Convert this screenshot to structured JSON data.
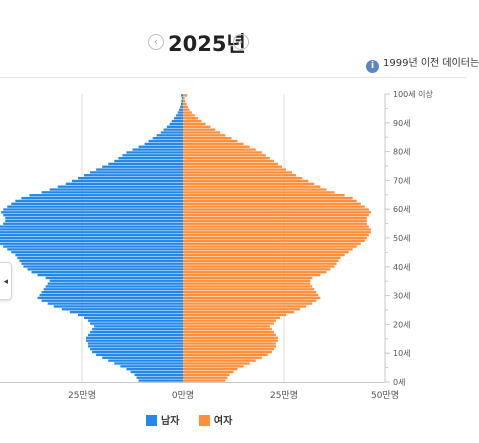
{
  "header": {
    "year": "2025년",
    "prev_icon": "chevron-left-circle-icon",
    "next_icon": "chevron-right-circle-icon",
    "prev_glyph": "‹",
    "next_glyph": "›",
    "notice_icon": "info-icon",
    "notice_glyph": "i",
    "notice_text": "1999년 이전 데이터는"
  },
  "side_tab": {
    "icon": "collapse-arrow-icon",
    "glyph": "◂"
  },
  "colors": {
    "male": "#2388e8",
    "female": "#ff8f3b",
    "axis": "#c8c8c8",
    "grid": "#dddddd"
  },
  "chart_data": {
    "type": "bar",
    "orientation": "horizontal-pyramid",
    "xlabel": "",
    "ylabel": "",
    "x_ticks": [
      "25만명",
      "0만명",
      "25만명",
      "50만명"
    ],
    "x_tick_values": [
      -25,
      0,
      25,
      50
    ],
    "y_ticks": [
      "100세 이상",
      "90세",
      "80세",
      "70세",
      "60세",
      "50세",
      "40세",
      "30세",
      "20세",
      "10세",
      "0세"
    ],
    "y_tick_ages": [
      100,
      90,
      80,
      70,
      60,
      50,
      40,
      30,
      20,
      10,
      0
    ],
    "xlim": [
      -50,
      50
    ],
    "unit": "만명",
    "ages": [
      0,
      1,
      2,
      3,
      4,
      5,
      6,
      7,
      8,
      9,
      10,
      11,
      12,
      13,
      14,
      15,
      16,
      17,
      18,
      19,
      20,
      21,
      22,
      23,
      24,
      25,
      26,
      27,
      28,
      29,
      30,
      31,
      32,
      33,
      34,
      35,
      36,
      37,
      38,
      39,
      40,
      41,
      42,
      43,
      44,
      45,
      46,
      47,
      48,
      49,
      50,
      51,
      52,
      53,
      54,
      55,
      56,
      57,
      58,
      59,
      60,
      61,
      62,
      63,
      64,
      65,
      66,
      67,
      68,
      69,
      70,
      71,
      72,
      73,
      74,
      75,
      76,
      77,
      78,
      79,
      80,
      81,
      82,
      83,
      84,
      85,
      86,
      87,
      88,
      89,
      90,
      91,
      92,
      93,
      94,
      95,
      96,
      97,
      98,
      99,
      100
    ],
    "series": [
      {
        "name": "남자",
        "values": [
          11,
          11.5,
          12,
          13,
          14,
          15.5,
          17,
          18.5,
          20,
          21.5,
          22.5,
          23,
          23.5,
          23.5,
          24,
          24,
          23.5,
          23,
          22.5,
          22,
          23,
          23.5,
          24.5,
          26,
          28,
          30,
          32,
          33.5,
          35,
          36,
          35.5,
          35,
          34.5,
          34,
          33.5,
          33,
          34,
          36,
          37.5,
          38.5,
          39.5,
          40,
          40.5,
          41,
          41.5,
          42.5,
          43.5,
          44.5,
          45.5,
          46,
          46.5,
          47,
          47,
          46.5,
          45.5,
          44.5,
          44,
          44,
          44.5,
          45,
          44.5,
          43.5,
          42.5,
          41.5,
          40,
          38,
          35,
          33,
          31,
          29,
          27.5,
          26,
          24.5,
          23,
          21.5,
          20,
          18.5,
          17,
          16,
          15,
          14,
          12.5,
          11,
          9.5,
          8.5,
          7.5,
          6.5,
          5.5,
          4.8,
          4,
          3.3,
          2.8,
          2.2,
          1.7,
          1.3,
          1,
          0.7,
          0.5,
          0.4,
          0.3,
          0.5
        ]
      },
      {
        "name": "여자",
        "values": [
          10.5,
          11,
          11.5,
          12.5,
          13.5,
          15,
          16.5,
          18,
          19.5,
          21,
          22,
          22.5,
          23,
          23,
          23.5,
          23.5,
          23,
          22.5,
          22,
          21.5,
          22.5,
          23,
          24,
          25.5,
          27.5,
          29,
          30.5,
          32,
          33,
          34,
          33.5,
          33,
          32.5,
          32,
          31.5,
          31.5,
          32,
          34,
          35.5,
          36.5,
          37.5,
          38,
          38.5,
          39,
          40,
          41,
          42,
          43,
          44,
          45,
          45.5,
          46,
          46.5,
          46.5,
          46,
          45.5,
          45.5,
          45.5,
          46,
          46.5,
          46,
          45,
          44,
          43,
          42,
          40,
          37.5,
          35.5,
          34,
          32.5,
          31,
          29.5,
          28,
          27,
          25.5,
          24.5,
          23.5,
          22.5,
          21.5,
          20.5,
          19.5,
          18,
          16.5,
          15,
          13.5,
          12,
          10.5,
          9.2,
          8,
          6.8,
          5.6,
          4.6,
          3.7,
          2.9,
          2.2,
          1.6,
          1.2,
          0.9,
          0.6,
          0.4,
          1
        ]
      }
    ],
    "legend": [
      "남자",
      "여자"
    ],
    "legend_position": "bottom-center",
    "grid": true
  }
}
